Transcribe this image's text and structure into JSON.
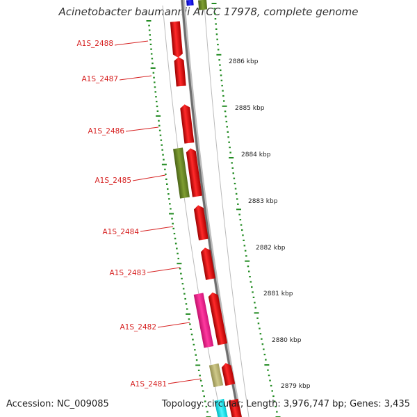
{
  "title": "Acinetobacter baumannii ATCC 17978, complete genome",
  "footer": {
    "accession": "Accession: NC_009085",
    "summary": "Topology: circular; Length: 3,976,747 bp; Genes: 3,435"
  },
  "gene_labels": [
    "A1S_2488",
    "A1S_2487",
    "A1S_2486",
    "A1S_2485",
    "A1S_2484",
    "A1S_2483",
    "A1S_2482",
    "A1S_2481"
  ],
  "scale_labels": [
    "2886 kbp",
    "2885 kbp",
    "2884 kbp",
    "2883 kbp",
    "2882 kbp",
    "2881 kbp",
    "2880 kbp",
    "2879 kbp"
  ],
  "colors": {
    "gene_red": "#ee0000",
    "gene_olive": "#6b8e23",
    "gene_pink": "#ff1493",
    "gene_khaki": "#bdb76b",
    "gene_blue": "#1010ee",
    "gene_cyan": "#00e5ee",
    "tick_green": "#228b22",
    "label_red": "#d62020",
    "backbone": "#888888"
  }
}
